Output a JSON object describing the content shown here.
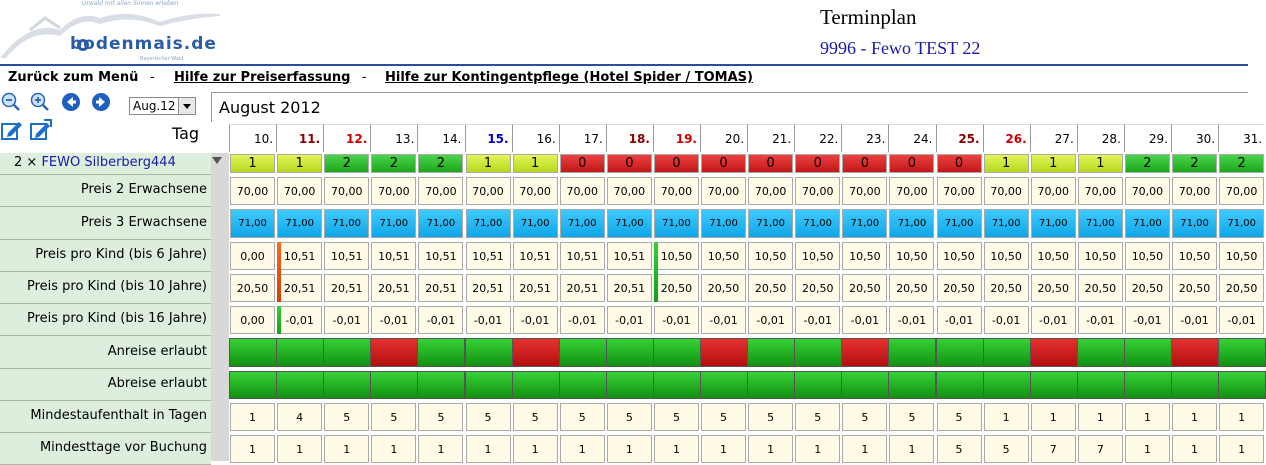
{
  "header": {
    "logo_brand": "bodenmais.de",
    "logo_tagline": "Urwald mit allen Sinnen erleben",
    "logo_subtitle": "Bayerischer Wald",
    "title": "Terminplan",
    "subtitle": "9996 - Fewo TEST 22"
  },
  "nav": {
    "back": "Zurück zum Menü",
    "sep1": "-",
    "help_price": "Hilfe zur Preiserfassung",
    "sep2": "-",
    "help_contingent": "Hilfe zur Kontingentpflege (Hotel Spider / TOMAS)"
  },
  "toolbar": {
    "month_value": "Aug.12",
    "icons": [
      "zoom-out-icon",
      "zoom-in-icon",
      "arrow-left-icon",
      "arrow-right-icon",
      "edit-icon",
      "edit-export-icon"
    ]
  },
  "calendar": {
    "month_title": "August 2012",
    "tag_label": "Tag",
    "days": [
      {
        "d": "10.",
        "type": "normal"
      },
      {
        "d": "11.",
        "type": "sat"
      },
      {
        "d": "12.",
        "type": "sun"
      },
      {
        "d": "13.",
        "type": "normal"
      },
      {
        "d": "14.",
        "type": "normal"
      },
      {
        "d": "15.",
        "type": "holiday"
      },
      {
        "d": "16.",
        "type": "normal"
      },
      {
        "d": "17.",
        "type": "normal"
      },
      {
        "d": "18.",
        "type": "sat"
      },
      {
        "d": "19.",
        "type": "sun"
      },
      {
        "d": "20.",
        "type": "normal"
      },
      {
        "d": "21.",
        "type": "normal"
      },
      {
        "d": "22.",
        "type": "normal"
      },
      {
        "d": "23.",
        "type": "normal"
      },
      {
        "d": "24.",
        "type": "normal"
      },
      {
        "d": "25.",
        "type": "sat"
      },
      {
        "d": "26.",
        "type": "sun"
      },
      {
        "d": "27.",
        "type": "normal"
      },
      {
        "d": "28.",
        "type": "normal"
      },
      {
        "d": "29.",
        "type": "normal"
      },
      {
        "d": "30.",
        "type": "normal"
      },
      {
        "d": "31.",
        "type": "normal"
      }
    ],
    "colors": {
      "sat": "#8b0000",
      "sun": "#cc0000",
      "holiday": "#0000cc",
      "normal": "#000000"
    },
    "unit_row": {
      "label_prefix": "2 ×",
      "label_link": "FEWO Silberberg444",
      "values": [
        "1",
        "1",
        "2",
        "2",
        "2",
        "1",
        "1",
        "0",
        "0",
        "0",
        "0",
        "0",
        "0",
        "0",
        "0",
        "0",
        "1",
        "1",
        "1",
        "2",
        "2",
        "2"
      ],
      "states": [
        "lime",
        "lime",
        "green",
        "green",
        "green",
        "lime",
        "lime",
        "red",
        "red",
        "red",
        "red",
        "red",
        "red",
        "red",
        "red",
        "red",
        "lime",
        "lime",
        "lime",
        "green",
        "green",
        "green"
      ]
    },
    "rows": [
      {
        "label": "Preis 2 Erwachsene",
        "style": "price2",
        "values": [
          "70,00",
          "70,00",
          "70,00",
          "70,00",
          "70,00",
          "70,00",
          "70,00",
          "70,00",
          "70,00",
          "70,00",
          "70,00",
          "70,00",
          "70,00",
          "70,00",
          "70,00",
          "70,00",
          "70,00",
          "70,00",
          "70,00",
          "70,00",
          "70,00",
          "70,00"
        ]
      },
      {
        "label": "Preis 3 Erwachsene",
        "style": "price3",
        "values": [
          "71,00",
          "71,00",
          "71,00",
          "71,00",
          "71,00",
          "71,00",
          "71,00",
          "71,00",
          "71,00",
          "71,00",
          "71,00",
          "71,00",
          "71,00",
          "71,00",
          "71,00",
          "71,00",
          "71,00",
          "71,00",
          "71,00",
          "71,00",
          "71,00",
          "71,00"
        ]
      },
      {
        "label": "Preis pro Kind (bis 6 Jahre)",
        "style": "cream",
        "values": [
          "0,00",
          "10,51",
          "10,51",
          "10,51",
          "10,51",
          "10,51",
          "10,51",
          "10,51",
          "10,51",
          "10,50",
          "10,50",
          "10,50",
          "10,50",
          "10,50",
          "10,50",
          "10,50",
          "10,50",
          "10,50",
          "10,50",
          "10,50",
          "10,50",
          "10,50"
        ]
      },
      {
        "label": "Preis pro Kind (bis 10 Jahre)",
        "style": "cream",
        "values": [
          "20,50",
          "20,51",
          "20,51",
          "20,51",
          "20,51",
          "20,51",
          "20,51",
          "20,51",
          "20,51",
          "20,50",
          "20,50",
          "20,50",
          "20,50",
          "20,50",
          "20,50",
          "20,50",
          "20,50",
          "20,50",
          "20,50",
          "20,50",
          "20,50",
          "20,50"
        ]
      },
      {
        "label": "Preis pro Kind (bis 16 Jahre)",
        "style": "cream",
        "values": [
          "0,00",
          "-0,01",
          "-0,01",
          "-0,01",
          "-0,01",
          "-0,01",
          "-0,01",
          "-0,01",
          "-0,01",
          "-0,01",
          "-0,01",
          "-0,01",
          "-0,01",
          "-0,01",
          "-0,01",
          "-0,01",
          "-0,01",
          "-0,01",
          "-0,01",
          "-0,01",
          "-0,01",
          "-0,01"
        ]
      },
      {
        "label": "Anreise erlaubt",
        "style": "bars",
        "states": [
          "green",
          "green",
          "green",
          "red",
          "green",
          "green",
          "red",
          "green",
          "green",
          "green",
          "red",
          "green",
          "green",
          "red",
          "green",
          "green",
          "green",
          "red",
          "green",
          "green",
          "red",
          "green"
        ]
      },
      {
        "label": "Abreise erlaubt",
        "style": "bars",
        "states": [
          "green",
          "green",
          "green",
          "green",
          "green",
          "green",
          "green",
          "green",
          "green",
          "green",
          "green",
          "green",
          "green",
          "green",
          "green",
          "green",
          "green",
          "green",
          "green",
          "green",
          "green",
          "green"
        ]
      },
      {
        "label": "Mindestaufenthalt in Tagen",
        "style": "cream",
        "values": [
          "1",
          "4",
          "5",
          "5",
          "5",
          "5",
          "5",
          "5",
          "5",
          "5",
          "5",
          "5",
          "5",
          "5",
          "5",
          "5",
          "1",
          "1",
          "1",
          "1",
          "1",
          "1"
        ]
      },
      {
        "label": "Mindesttage vor Buchung",
        "style": "cream",
        "values": [
          "1",
          "1",
          "1",
          "1",
          "1",
          "1",
          "1",
          "1",
          "1",
          "1",
          "1",
          "1",
          "1",
          "1",
          "1",
          "5",
          "5",
          "7",
          "7",
          "1",
          "1",
          "1"
        ]
      }
    ]
  }
}
